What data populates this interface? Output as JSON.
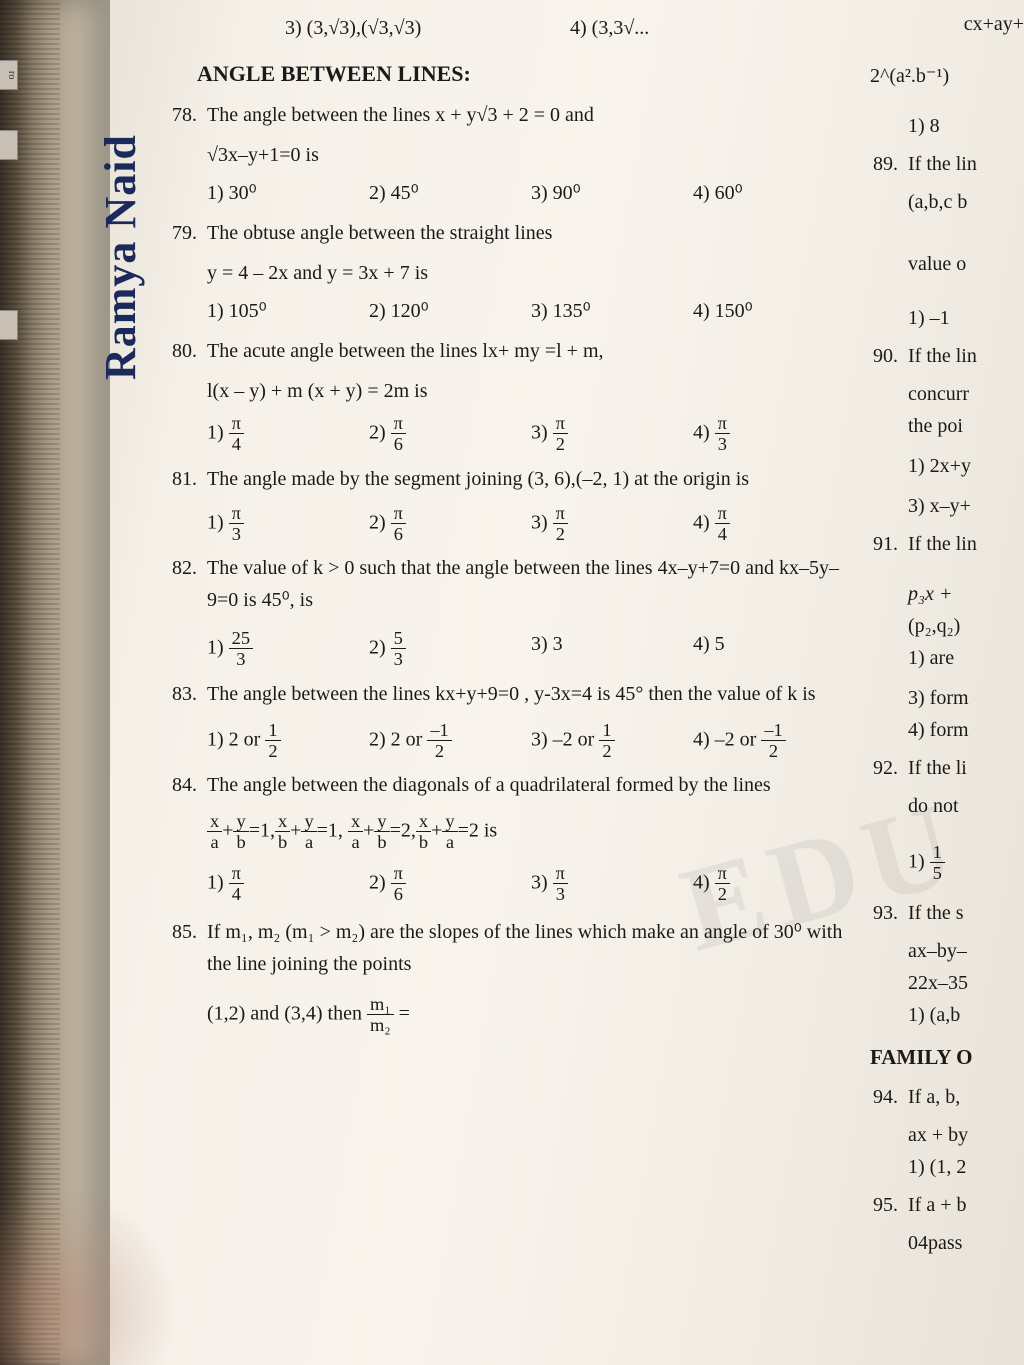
{
  "handwriting": "Ramya Naid",
  "left_tabs": [
    "ro",
    "",
    ""
  ],
  "top_fragment": {
    "opt3": "3) (3,√3),(√3,√3)",
    "opt4": "4) (3,3√..."
  },
  "section_title": "ANGLE BETWEEN LINES:",
  "questions": [
    {
      "num": "78.",
      "text_a": "The angle between the lines x + y√3 + 2 = 0 and",
      "text_b": "√3x–y+1=0 is",
      "options": [
        "1) 30⁰",
        "2) 45⁰",
        "3) 90⁰",
        "4) 60⁰"
      ]
    },
    {
      "num": "79.",
      "text_a": "The obtuse angle between the straight lines",
      "text_b": "y = 4 – 2x and y = 3x + 7 is",
      "options": [
        "1) 105⁰",
        "2) 120⁰",
        "3) 135⁰",
        "4) 150⁰"
      ]
    },
    {
      "num": "80.",
      "text_a": "The acute angle between the lines lx+ my =l + m,",
      "text_b": "l(x – y) + m (x + y) = 2m is",
      "frac_options": [
        {
          "label": "1)",
          "num": "π",
          "den": "4"
        },
        {
          "label": "2)",
          "num": "π",
          "den": "6"
        },
        {
          "label": "3)",
          "num": "π",
          "den": "2"
        },
        {
          "label": "4)",
          "num": "π",
          "den": "3"
        }
      ]
    },
    {
      "num": "81.",
      "text_a": "The angle made by the segment joining (3, 6),(–2, 1) at the origin is",
      "frac_options": [
        {
          "label": "1)",
          "num": "π",
          "den": "3"
        },
        {
          "label": "2)",
          "num": "π",
          "den": "6"
        },
        {
          "label": "3)",
          "num": "π",
          "den": "2"
        },
        {
          "label": "4)",
          "num": "π",
          "den": "4"
        }
      ]
    },
    {
      "num": "82.",
      "text_a": "The value of k > 0 such that the angle between the lines 4x–y+7=0 and kx–5y–9=0 is 45⁰, is",
      "mixed_options": [
        {
          "label": "1)",
          "num": "25",
          "den": "3"
        },
        {
          "label": "2)",
          "num": "5",
          "den": "3"
        },
        {
          "label": "3) 3"
        },
        {
          "label": "4) 5"
        }
      ]
    },
    {
      "num": "83.",
      "text_a": "The angle between the lines kx+y+9=0 , y-3x=4 is 45° then the value of k is",
      "mixed_options": [
        {
          "prefix": "1) 2 or",
          "num": "1",
          "den": "2"
        },
        {
          "prefix": "2) 2 or",
          "num": "–1",
          "den": "2"
        },
        {
          "prefix": "3) –2 or",
          "num": "1",
          "den": "2"
        },
        {
          "prefix": "4) –2 or",
          "num": "–1",
          "den": "2"
        }
      ]
    },
    {
      "num": "84.",
      "text_a": "The angle between the diagonals of a quadrilateral formed by the lines",
      "equation_fracs": [
        {
          "n": "x",
          "d": "a"
        },
        {
          "op": "+"
        },
        {
          "n": "y",
          "d": "b"
        },
        {
          "op": "=1,"
        },
        {
          "n": "x",
          "d": "b"
        },
        {
          "op": "+"
        },
        {
          "n": "y",
          "d": "a"
        },
        {
          "op": "=1, "
        },
        {
          "n": "x",
          "d": "a"
        },
        {
          "op": "+"
        },
        {
          "n": "y",
          "d": "b"
        },
        {
          "op": "=2,"
        },
        {
          "n": "x",
          "d": "b"
        },
        {
          "op": "+"
        },
        {
          "n": "y",
          "d": "a"
        },
        {
          "op": "=2 is"
        }
      ],
      "frac_options": [
        {
          "label": "1)",
          "num": "π",
          "den": "4"
        },
        {
          "label": "2)",
          "num": "π",
          "den": "6"
        },
        {
          "label": "3)",
          "num": "π",
          "den": "3"
        },
        {
          "label": "4)",
          "num": "π",
          "den": "2"
        }
      ]
    },
    {
      "num": "85.",
      "text_a": "If m₁, m₂ (m₁ > m₂) are the slopes of the lines which make an angle of 30⁰ with the line joining the points",
      "tail": {
        "prefix": "(1,2) and (3,4) then ",
        "num": "m₁",
        "den": "m₂",
        "suffix": " ="
      }
    }
  ],
  "right": {
    "top_lines": [
      "cx+ay+",
      "2^(a².b⁻¹)"
    ],
    "q89": {
      "num": "89.",
      "opt1": "1) 8",
      "text": "If the lin",
      "text2": "(a,b,c b",
      "text3": "value o",
      "text4": "1) –1"
    },
    "q90": {
      "num": "90.",
      "text": "If the lin",
      "text2": "concurr",
      "text3": "the poi",
      "opt1": "1) 2x+y",
      "opt3": "3) x–y+"
    },
    "q91": {
      "num": "91.",
      "text": "If the lin",
      "text2": "p₃x +",
      "text3": "(p₂,q₂)",
      "opts": [
        "1) are",
        "3) form",
        "4) form"
      ]
    },
    "q92": {
      "num": "92.",
      "text": "If the li",
      "text2": "do not",
      "opt": {
        "label": "1)",
        "num": "1",
        "den": "5"
      }
    },
    "q93": {
      "num": "93.",
      "text": "If the s",
      "text2": "ax–by–",
      "text3": "22x–35",
      "opt": "1) (a,b"
    },
    "family": "FAMILY O",
    "q94": {
      "num": "94.",
      "text": "If a, b,",
      "text2": "ax + by",
      "opt": "1) (1, 2"
    },
    "q95": {
      "num": "95.",
      "text": "If a + b",
      "text2": "04pass"
    }
  },
  "colors": {
    "text": "#1a1a1a",
    "handwriting": "#1a2a5a",
    "paper": "#f5f0e8"
  }
}
